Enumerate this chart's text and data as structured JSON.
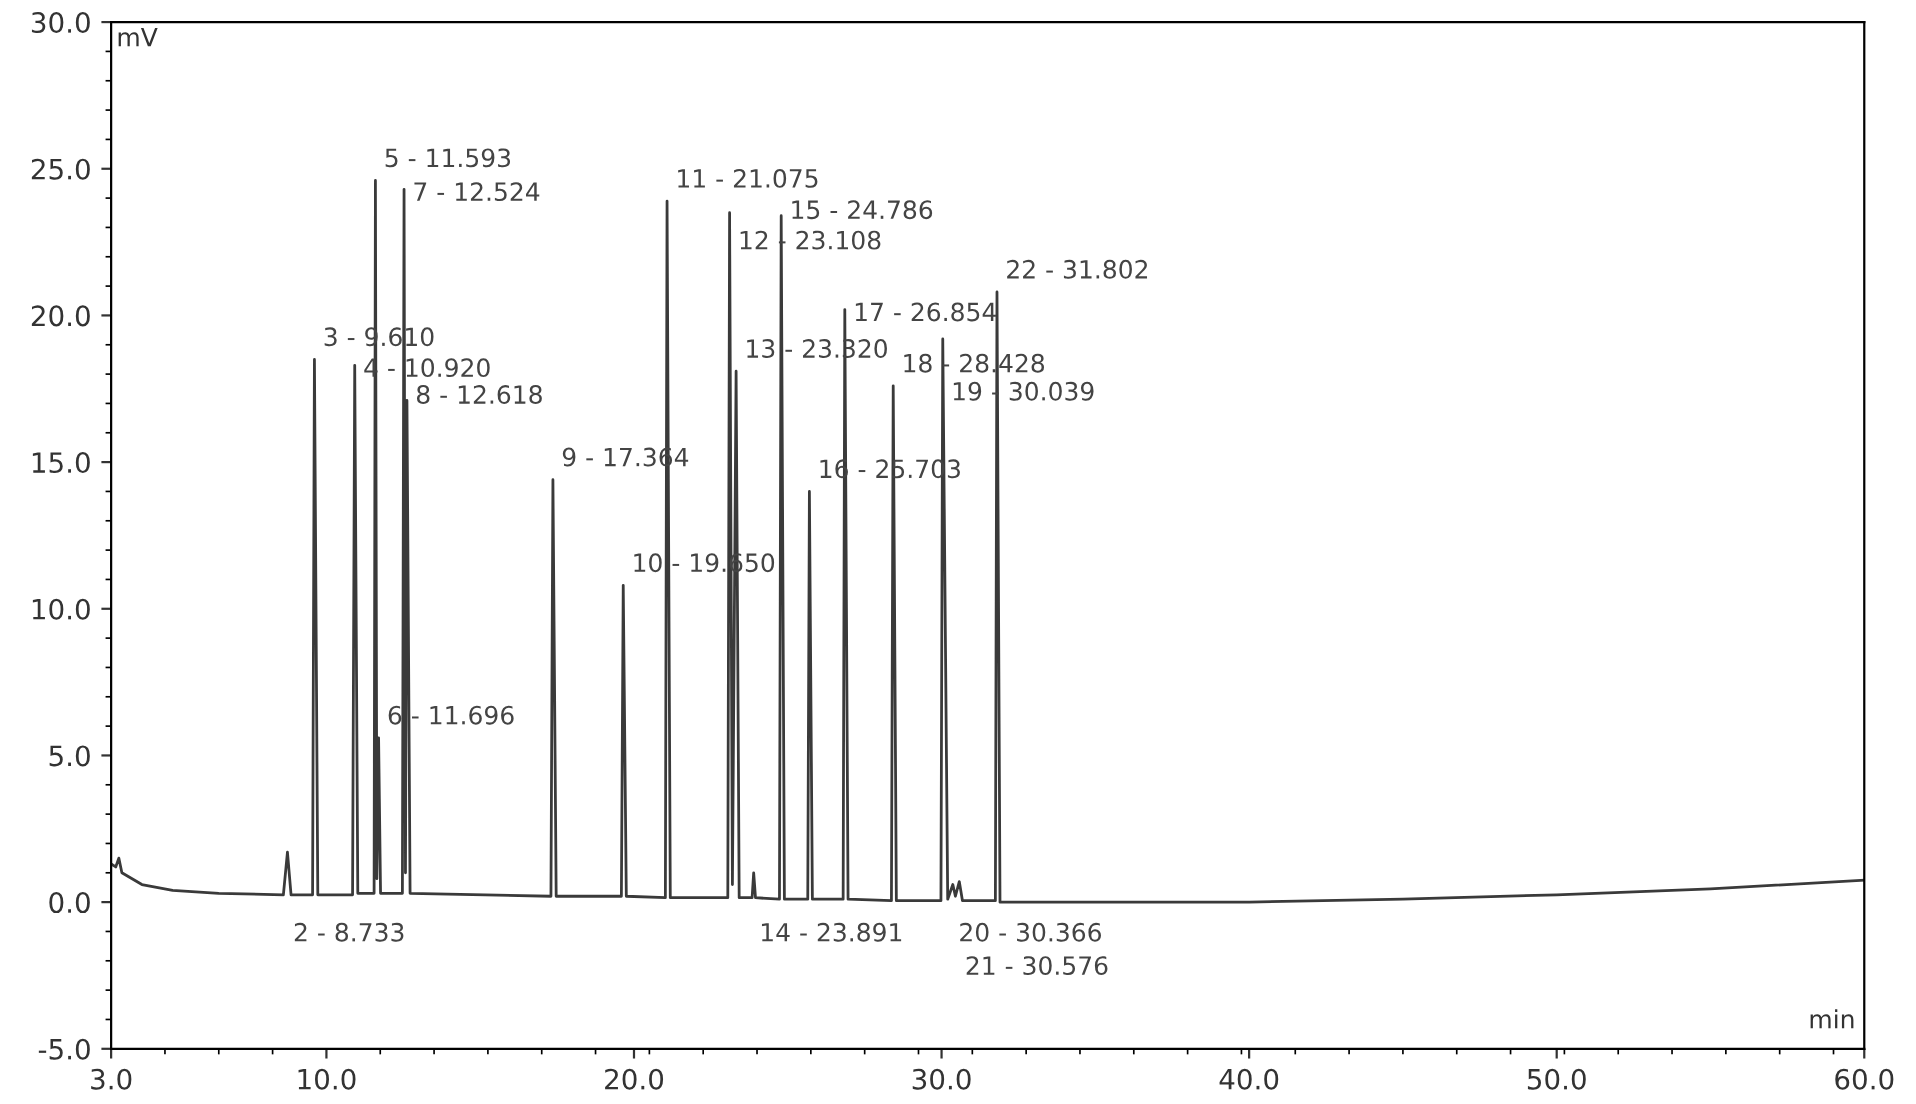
{
  "chart_data": {
    "type": "line",
    "xlabel": "min",
    "ylabel": "mV",
    "xlim": [
      3,
      60
    ],
    "ylim": [
      -5,
      30
    ],
    "xticks": [
      {
        "value": 3,
        "label": "3.0"
      },
      {
        "value": 10,
        "label": "10.0"
      },
      {
        "value": 20,
        "label": "20.0"
      },
      {
        "value": 30,
        "label": "30.0"
      },
      {
        "value": 40,
        "label": "40.0"
      },
      {
        "value": 50,
        "label": "50.0"
      },
      {
        "value": 60,
        "label": "60.0"
      }
    ],
    "yticks": [
      {
        "value": -5,
        "label": "-5.0"
      },
      {
        "value": 0,
        "label": "0.0"
      },
      {
        "value": 5,
        "label": "5.0"
      },
      {
        "value": 10,
        "label": "10.0"
      },
      {
        "value": 15,
        "label": "15.0"
      },
      {
        "value": 20,
        "label": "20.0"
      },
      {
        "value": 25,
        "label": "25.0"
      },
      {
        "value": 30,
        "label": "30.0"
      }
    ],
    "grid": false,
    "legend": false,
    "marker": "none",
    "line_style": "solid",
    "series": [
      {
        "color": "#3a3a3a",
        "x": [
          3.0,
          3.15,
          3.25,
          3.35,
          4.0,
          5.0,
          6.5,
          8.6,
          8.733,
          8.85,
          9.55,
          9.61,
          9.72,
          10.85,
          10.92,
          11.02,
          11.55,
          11.593,
          11.64,
          11.696,
          11.76,
          12.47,
          12.524,
          12.57,
          12.618,
          12.72,
          17.3,
          17.364,
          17.47,
          19.59,
          19.65,
          19.75,
          21.02,
          21.075,
          21.18,
          23.05,
          23.108,
          23.2,
          23.32,
          23.42,
          23.84,
          23.891,
          23.95,
          24.73,
          24.786,
          24.89,
          25.65,
          25.703,
          25.8,
          26.8,
          26.854,
          26.96,
          28.37,
          28.428,
          28.53,
          29.98,
          30.039,
          30.2,
          30.366,
          30.45,
          30.576,
          30.68,
          31.75,
          31.802,
          31.9,
          35,
          40,
          45,
          50,
          55,
          60
        ],
        "values": [
          1.3,
          1.2,
          1.5,
          1.0,
          0.6,
          0.4,
          0.3,
          0.25,
          1.7,
          0.25,
          0.25,
          18.5,
          0.25,
          0.25,
          18.3,
          0.3,
          0.3,
          24.6,
          0.8,
          5.6,
          0.3,
          0.3,
          24.3,
          1.0,
          17.1,
          0.3,
          0.2,
          14.4,
          0.2,
          0.2,
          10.8,
          0.2,
          0.15,
          23.9,
          0.15,
          0.15,
          23.5,
          0.6,
          18.1,
          0.15,
          0.15,
          1.0,
          0.15,
          0.1,
          23.4,
          0.1,
          0.1,
          14.0,
          0.1,
          0.1,
          20.2,
          0.1,
          0.05,
          17.6,
          0.05,
          0.05,
          19.2,
          0.1,
          0.6,
          0.2,
          0.7,
          0.05,
          0.05,
          20.8,
          0.0,
          0.0,
          0.0,
          0.1,
          0.25,
          0.45,
          0.75
        ]
      }
    ],
    "annotations": [
      {
        "text": "2 - 8.733",
        "x": 8.733,
        "y": 1.7
      },
      {
        "text": "3 - 9.610",
        "x": 9.61,
        "y": 18.5
      },
      {
        "text": "4 - 10.920",
        "x": 10.92,
        "y": 18.3
      },
      {
        "text": "5 - 11.593",
        "x": 11.593,
        "y": 24.6
      },
      {
        "text": "6 - 11.696",
        "x": 11.696,
        "y": 5.6
      },
      {
        "text": "7 - 12.524",
        "x": 12.524,
        "y": 24.3
      },
      {
        "text": "8 - 12.618",
        "x": 12.618,
        "y": 17.1
      },
      {
        "text": "9 - 17.364",
        "x": 17.364,
        "y": 14.4
      },
      {
        "text": "10 - 19.650",
        "x": 19.65,
        "y": 10.8
      },
      {
        "text": "11 - 21.075",
        "x": 21.075,
        "y": 23.9
      },
      {
        "text": "12 - 23.108",
        "x": 23.108,
        "y": 23.5
      },
      {
        "text": "13 - 23.320",
        "x": 23.32,
        "y": 18.1
      },
      {
        "text": "14 - 23.891",
        "x": 23.891,
        "y": 1.0
      },
      {
        "text": "15 - 24.786",
        "x": 24.786,
        "y": 23.4
      },
      {
        "text": "16 - 25.703",
        "x": 25.703,
        "y": 14.0
      },
      {
        "text": "17 - 26.854",
        "x": 26.854,
        "y": 20.2
      },
      {
        "text": "18 - 28.428",
        "x": 28.428,
        "y": 17.6
      },
      {
        "text": "19 - 30.039",
        "x": 30.039,
        "y": 19.2
      },
      {
        "text": "20 - 30.366",
        "x": 30.366,
        "y": 0.6
      },
      {
        "text": "21 - 30.576",
        "x": 30.576,
        "y": 0.7
      },
      {
        "text": "22 - 31.802",
        "x": 31.802,
        "y": 20.8
      }
    ]
  }
}
